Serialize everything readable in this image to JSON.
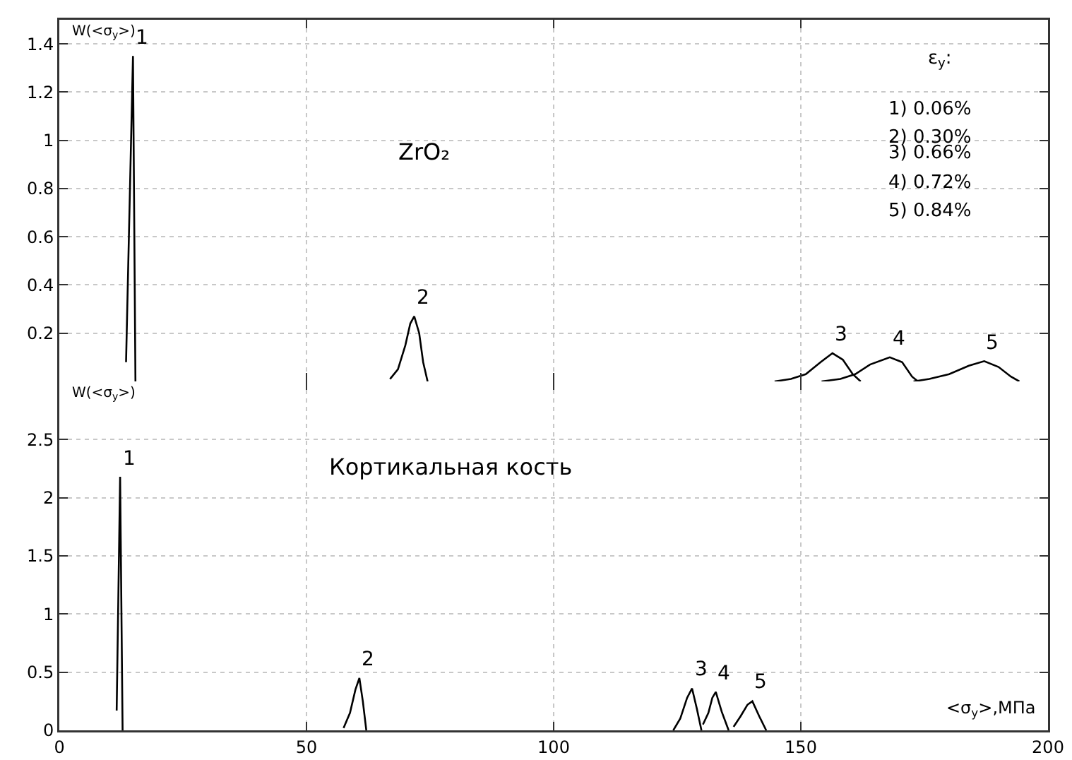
{
  "chart_data": [
    {
      "type": "line",
      "title": "ZrO₂",
      "ylabel": "W(<σ$_{y}$>)",
      "xlim": [
        0,
        200
      ],
      "xticks": [
        0,
        50,
        100,
        150,
        200
      ],
      "ylim": [
        0,
        1.5
      ],
      "yticks": [
        0.2,
        0.4,
        0.6,
        0.8,
        1,
        1.2,
        1.4
      ],
      "tick_labels": "y",
      "grid": true,
      "legend": false,
      "marker": "none",
      "line_style": "solid",
      "annotations": [
        "ε$_{y}$:",
        "1) 0.06%",
        "2) 0.30%",
        "3) 0.66%",
        "4) 0.72%",
        "5) 0.84%"
      ],
      "series": [
        {
          "name": "1",
          "color": "#000000",
          "x": [
            13.5,
            14.9,
            15.4
          ],
          "values": [
            0.08,
            1.35,
            0
          ]
        },
        {
          "name": "2",
          "color": "#000000",
          "x": [
            66.9,
            68.5,
            70,
            71,
            71.8,
            72.8,
            73.6,
            74.5
          ],
          "values": [
            0.01,
            0.05,
            0.15,
            0.24,
            0.27,
            0.2,
            0.08,
            0
          ]
        },
        {
          "name": "3",
          "color": "#000000",
          "x": [
            144.7,
            148,
            151,
            154,
            156.4,
            158.5,
            160.5,
            162.1
          ],
          "values": [
            0,
            0.01,
            0.03,
            0.08,
            0.117,
            0.09,
            0.03,
            0
          ]
        },
        {
          "name": "4",
          "color": "#000000",
          "x": [
            154.2,
            158,
            161,
            164,
            168,
            170.5,
            172.5,
            173.7
          ],
          "values": [
            0,
            0.01,
            0.03,
            0.07,
            0.1,
            0.08,
            0.02,
            0
          ]
        },
        {
          "name": "5",
          "color": "#000000",
          "x": [
            172.8,
            176,
            180,
            184,
            187.1,
            190,
            192.5,
            194.2
          ],
          "values": [
            0,
            0.01,
            0.03,
            0.065,
            0.084,
            0.06,
            0.02,
            0
          ]
        }
      ]
    },
    {
      "type": "line",
      "title": "Кортикальная кость",
      "ylabel": "W(<σ$_{y}$>)",
      "xlabel": "<σ$_{y}$>,МПа",
      "xlim": [
        0,
        200
      ],
      "xticks": [
        0,
        50,
        100,
        150,
        200
      ],
      "ylim": [
        0,
        3
      ],
      "yticks": [
        0,
        0.5,
        1,
        1.5,
        2,
        2.5
      ],
      "grid": true,
      "legend": false,
      "marker": "none",
      "line_style": "solid",
      "series": [
        {
          "name": "1",
          "color": "#000000",
          "x": [
            11.6,
            12.3,
            12.8
          ],
          "values": [
            0.17,
            2.18,
            0
          ]
        },
        {
          "name": "2",
          "color": "#000000",
          "x": [
            57.5,
            58.8,
            59.9,
            60.7,
            61.4,
            62.1
          ],
          "values": [
            0.02,
            0.15,
            0.35,
            0.45,
            0.25,
            0
          ]
        },
        {
          "name": "3",
          "color": "#000000",
          "x": [
            124.2,
            125.6,
            127,
            128,
            129,
            129.9
          ],
          "values": [
            0,
            0.1,
            0.28,
            0.36,
            0.18,
            0
          ]
        },
        {
          "name": "4",
          "color": "#000000",
          "x": [
            130.2,
            131.3,
            132.1,
            132.8,
            134,
            135.4
          ],
          "values": [
            0.05,
            0.15,
            0.28,
            0.33,
            0.16,
            0
          ]
        },
        {
          "name": "5",
          "color": "#000000",
          "x": [
            136.4,
            137.8,
            139.2,
            140.2,
            141.6,
            143
          ],
          "values": [
            0.03,
            0.12,
            0.22,
            0.25,
            0.12,
            0
          ]
        }
      ]
    }
  ]
}
